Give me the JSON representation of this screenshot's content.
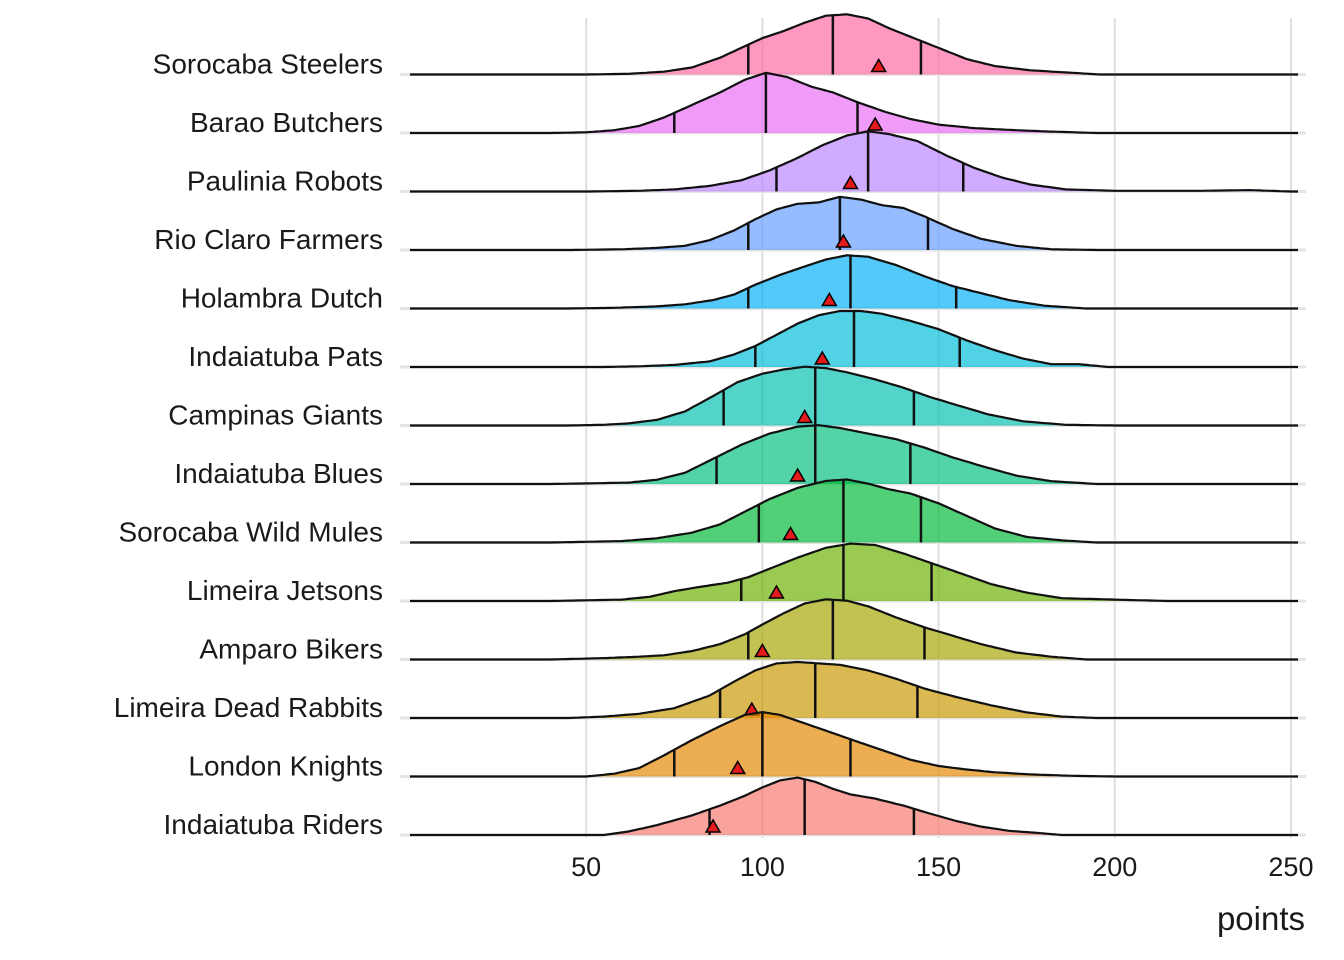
{
  "chart_data": {
    "type": "ridgeline",
    "xlabel": "points",
    "xlim": [
      0,
      252
    ],
    "xticks": [
      50,
      100,
      150,
      200,
      250
    ],
    "grid": true,
    "legend": "none",
    "quantile_lines": [
      "q25",
      "median",
      "q75"
    ],
    "marker": {
      "shape": "triangle",
      "color": "#e41a1c"
    },
    "series": [
      {
        "name": "Indaiatuba Riders",
        "color": "#F8766D",
        "q25": 85,
        "median": 112,
        "q75": 143,
        "marker": 86,
        "density": [
          [
            55,
            0
          ],
          [
            62,
            0.05
          ],
          [
            70,
            0.14
          ],
          [
            80,
            0.28
          ],
          [
            88,
            0.42
          ],
          [
            95,
            0.56
          ],
          [
            100,
            0.68
          ],
          [
            105,
            0.78
          ],
          [
            110,
            0.82
          ],
          [
            115,
            0.76
          ],
          [
            120,
            0.66
          ],
          [
            125,
            0.58
          ],
          [
            132,
            0.52
          ],
          [
            140,
            0.42
          ],
          [
            148,
            0.3
          ],
          [
            155,
            0.2
          ],
          [
            162,
            0.12
          ],
          [
            170,
            0.06
          ],
          [
            178,
            0.03
          ],
          [
            185,
            0
          ]
        ]
      },
      {
        "name": "London Knights",
        "color": "#E58700",
        "q25": 75,
        "median": 100,
        "q75": 125,
        "marker": 93,
        "density": [
          [
            50,
            0
          ],
          [
            58,
            0.04
          ],
          [
            65,
            0.12
          ],
          [
            72,
            0.3
          ],
          [
            80,
            0.52
          ],
          [
            88,
            0.72
          ],
          [
            95,
            0.88
          ],
          [
            100,
            0.92
          ],
          [
            105,
            0.88
          ],
          [
            112,
            0.76
          ],
          [
            120,
            0.62
          ],
          [
            128,
            0.48
          ],
          [
            135,
            0.36
          ],
          [
            142,
            0.24
          ],
          [
            150,
            0.15
          ],
          [
            158,
            0.1
          ],
          [
            166,
            0.06
          ],
          [
            176,
            0.03
          ],
          [
            188,
            0.01
          ],
          [
            200,
            0
          ]
        ]
      },
      {
        "name": "Limeira Dead Rabbits",
        "color": "#C99800",
        "q25": 88,
        "median": 115,
        "q75": 144,
        "marker": 97,
        "density": [
          [
            45,
            0
          ],
          [
            55,
            0.02
          ],
          [
            65,
            0.06
          ],
          [
            75,
            0.14
          ],
          [
            85,
            0.32
          ],
          [
            92,
            0.52
          ],
          [
            98,
            0.68
          ],
          [
            104,
            0.78
          ],
          [
            110,
            0.8
          ],
          [
            116,
            0.78
          ],
          [
            122,
            0.76
          ],
          [
            130,
            0.68
          ],
          [
            138,
            0.56
          ],
          [
            146,
            0.42
          ],
          [
            155,
            0.3
          ],
          [
            165,
            0.18
          ],
          [
            175,
            0.08
          ],
          [
            185,
            0.02
          ],
          [
            195,
            0
          ]
        ]
      },
      {
        "name": "Amparo Bikers",
        "color": "#A3A500",
        "q25": 96,
        "median": 120,
        "q75": 146,
        "marker": 100,
        "density": [
          [
            40,
            0
          ],
          [
            55,
            0.02
          ],
          [
            65,
            0.04
          ],
          [
            72,
            0.06
          ],
          [
            80,
            0.12
          ],
          [
            88,
            0.22
          ],
          [
            95,
            0.36
          ],
          [
            100,
            0.5
          ],
          [
            106,
            0.66
          ],
          [
            112,
            0.8
          ],
          [
            118,
            0.86
          ],
          [
            124,
            0.84
          ],
          [
            130,
            0.76
          ],
          [
            138,
            0.6
          ],
          [
            146,
            0.46
          ],
          [
            154,
            0.34
          ],
          [
            162,
            0.22
          ],
          [
            172,
            0.1
          ],
          [
            182,
            0.04
          ],
          [
            192,
            0
          ]
        ]
      },
      {
        "name": "Limeira Jetsons",
        "color": "#6BB100",
        "q25": 94,
        "median": 123,
        "q75": 148,
        "marker": 104,
        "density": [
          [
            40,
            0
          ],
          [
            50,
            0.01
          ],
          [
            60,
            0.02
          ],
          [
            68,
            0.06
          ],
          [
            75,
            0.14
          ],
          [
            82,
            0.2
          ],
          [
            90,
            0.26
          ],
          [
            96,
            0.34
          ],
          [
            102,
            0.46
          ],
          [
            110,
            0.62
          ],
          [
            118,
            0.76
          ],
          [
            125,
            0.82
          ],
          [
            132,
            0.8
          ],
          [
            140,
            0.68
          ],
          [
            148,
            0.54
          ],
          [
            156,
            0.4
          ],
          [
            165,
            0.24
          ],
          [
            175,
            0.12
          ],
          [
            185,
            0.04
          ],
          [
            200,
            0.02
          ],
          [
            215,
            0
          ]
        ]
      },
      {
        "name": "Sorocaba Wild Mules",
        "color": "#00BA38",
        "q25": 99,
        "median": 123,
        "q75": 145,
        "marker": 108,
        "density": [
          [
            40,
            0
          ],
          [
            50,
            0.01
          ],
          [
            60,
            0.02
          ],
          [
            70,
            0.06
          ],
          [
            80,
            0.14
          ],
          [
            88,
            0.26
          ],
          [
            95,
            0.44
          ],
          [
            102,
            0.62
          ],
          [
            110,
            0.78
          ],
          [
            118,
            0.88
          ],
          [
            124,
            0.9
          ],
          [
            130,
            0.84
          ],
          [
            136,
            0.76
          ],
          [
            142,
            0.7
          ],
          [
            150,
            0.56
          ],
          [
            158,
            0.38
          ],
          [
            166,
            0.2
          ],
          [
            175,
            0.08
          ],
          [
            185,
            0.03
          ],
          [
            195,
            0
          ]
        ]
      },
      {
        "name": "Indaiatuba Blues",
        "color": "#00BF7D",
        "q25": 87,
        "median": 115,
        "q75": 142,
        "marker": 110,
        "density": [
          [
            40,
            0
          ],
          [
            52,
            0.01
          ],
          [
            62,
            0.02
          ],
          [
            70,
            0.06
          ],
          [
            78,
            0.16
          ],
          [
            86,
            0.36
          ],
          [
            94,
            0.56
          ],
          [
            102,
            0.72
          ],
          [
            110,
            0.82
          ],
          [
            116,
            0.84
          ],
          [
            122,
            0.8
          ],
          [
            130,
            0.72
          ],
          [
            138,
            0.64
          ],
          [
            146,
            0.52
          ],
          [
            154,
            0.38
          ],
          [
            162,
            0.26
          ],
          [
            172,
            0.12
          ],
          [
            182,
            0.04
          ],
          [
            195,
            0
          ]
        ]
      },
      {
        "name": "Campinas Giants",
        "color": "#00C0AF",
        "q25": 89,
        "median": 115,
        "q75": 143,
        "marker": 112,
        "density": [
          [
            45,
            0
          ],
          [
            55,
            0.01
          ],
          [
            62,
            0.03
          ],
          [
            70,
            0.08
          ],
          [
            78,
            0.2
          ],
          [
            86,
            0.42
          ],
          [
            93,
            0.62
          ],
          [
            100,
            0.74
          ],
          [
            106,
            0.8
          ],
          [
            112,
            0.84
          ],
          [
            118,
            0.82
          ],
          [
            124,
            0.76
          ],
          [
            132,
            0.66
          ],
          [
            140,
            0.54
          ],
          [
            148,
            0.4
          ],
          [
            156,
            0.28
          ],
          [
            164,
            0.16
          ],
          [
            174,
            0.06
          ],
          [
            186,
            0.01
          ],
          [
            200,
            0
          ]
        ]
      },
      {
        "name": "Indaiatuba Pats",
        "color": "#00BCD8",
        "q25": 98,
        "median": 126,
        "q75": 156,
        "marker": 117,
        "density": [
          [
            55,
            0
          ],
          [
            65,
            0.01
          ],
          [
            75,
            0.03
          ],
          [
            85,
            0.08
          ],
          [
            92,
            0.18
          ],
          [
            98,
            0.3
          ],
          [
            104,
            0.46
          ],
          [
            110,
            0.62
          ],
          [
            116,
            0.74
          ],
          [
            122,
            0.8
          ],
          [
            128,
            0.8
          ],
          [
            134,
            0.76
          ],
          [
            142,
            0.66
          ],
          [
            150,
            0.54
          ],
          [
            158,
            0.38
          ],
          [
            166,
            0.24
          ],
          [
            174,
            0.12
          ],
          [
            182,
            0.04
          ],
          [
            190,
            0.04
          ],
          [
            198,
            0
          ]
        ]
      },
      {
        "name": "Holambra Dutch",
        "color": "#00B0F6",
        "q25": 96,
        "median": 125,
        "q75": 155,
        "marker": 119,
        "density": [
          [
            45,
            0
          ],
          [
            58,
            0.01
          ],
          [
            70,
            0.03
          ],
          [
            78,
            0.06
          ],
          [
            86,
            0.12
          ],
          [
            92,
            0.2
          ],
          [
            98,
            0.34
          ],
          [
            105,
            0.48
          ],
          [
            112,
            0.6
          ],
          [
            118,
            0.7
          ],
          [
            124,
            0.76
          ],
          [
            130,
            0.74
          ],
          [
            138,
            0.62
          ],
          [
            146,
            0.46
          ],
          [
            154,
            0.32
          ],
          [
            162,
            0.22
          ],
          [
            170,
            0.12
          ],
          [
            180,
            0.04
          ],
          [
            192,
            0
          ]
        ]
      },
      {
        "name": "Rio Claro Farmers",
        "color": "#619CFF",
        "q25": 96,
        "median": 122,
        "q75": 147,
        "marker": 123,
        "density": [
          [
            45,
            0
          ],
          [
            60,
            0.01
          ],
          [
            70,
            0.03
          ],
          [
            78,
            0.06
          ],
          [
            85,
            0.14
          ],
          [
            92,
            0.28
          ],
          [
            98,
            0.44
          ],
          [
            104,
            0.58
          ],
          [
            110,
            0.66
          ],
          [
            116,
            0.68
          ],
          [
            122,
            0.76
          ],
          [
            128,
            0.72
          ],
          [
            134,
            0.64
          ],
          [
            140,
            0.6
          ],
          [
            146,
            0.48
          ],
          [
            154,
            0.3
          ],
          [
            162,
            0.16
          ],
          [
            172,
            0.06
          ],
          [
            182,
            0.01
          ],
          [
            195,
            0
          ]
        ]
      },
      {
        "name": "Paulinia Robots",
        "color": "#B983FF",
        "q25": 104,
        "median": 130,
        "q75": 157,
        "marker": 125,
        "density": [
          [
            50,
            0
          ],
          [
            65,
            0.01
          ],
          [
            75,
            0.03
          ],
          [
            85,
            0.08
          ],
          [
            94,
            0.16
          ],
          [
            102,
            0.3
          ],
          [
            110,
            0.48
          ],
          [
            117,
            0.66
          ],
          [
            124,
            0.8
          ],
          [
            130,
            0.86
          ],
          [
            136,
            0.82
          ],
          [
            144,
            0.72
          ],
          [
            152,
            0.52
          ],
          [
            160,
            0.34
          ],
          [
            168,
            0.2
          ],
          [
            176,
            0.1
          ],
          [
            186,
            0.03
          ],
          [
            200,
            0.01
          ],
          [
            225,
            0.01
          ],
          [
            238,
            0.02
          ],
          [
            250,
            0
          ]
        ]
      },
      {
        "name": "Barao Butchers",
        "color": "#E76BF3",
        "q25": 75,
        "median": 101,
        "q75": 127,
        "marker": 132,
        "density": [
          [
            40,
            0
          ],
          [
            50,
            0.01
          ],
          [
            58,
            0.04
          ],
          [
            65,
            0.1
          ],
          [
            72,
            0.22
          ],
          [
            80,
            0.4
          ],
          [
            88,
            0.58
          ],
          [
            95,
            0.76
          ],
          [
            101,
            0.86
          ],
          [
            107,
            0.8
          ],
          [
            114,
            0.66
          ],
          [
            120,
            0.58
          ],
          [
            127,
            0.44
          ],
          [
            135,
            0.3
          ],
          [
            142,
            0.2
          ],
          [
            150,
            0.12
          ],
          [
            160,
            0.07
          ],
          [
            172,
            0.04
          ],
          [
            182,
            0.02
          ],
          [
            195,
            0
          ]
        ]
      },
      {
        "name": "Sorocaba Steelers",
        "color": "#FF67A4",
        "q25": 96,
        "median": 120,
        "q75": 145,
        "marker": 133,
        "density": [
          [
            50,
            0
          ],
          [
            62,
            0.01
          ],
          [
            72,
            0.04
          ],
          [
            80,
            0.1
          ],
          [
            88,
            0.24
          ],
          [
            94,
            0.38
          ],
          [
            100,
            0.52
          ],
          [
            106,
            0.62
          ],
          [
            112,
            0.74
          ],
          [
            118,
            0.84
          ],
          [
            124,
            0.86
          ],
          [
            130,
            0.8
          ],
          [
            136,
            0.66
          ],
          [
            144,
            0.5
          ],
          [
            150,
            0.38
          ],
          [
            158,
            0.22
          ],
          [
            166,
            0.12
          ],
          [
            176,
            0.06
          ],
          [
            186,
            0.03
          ],
          [
            196,
            0
          ]
        ]
      }
    ]
  }
}
